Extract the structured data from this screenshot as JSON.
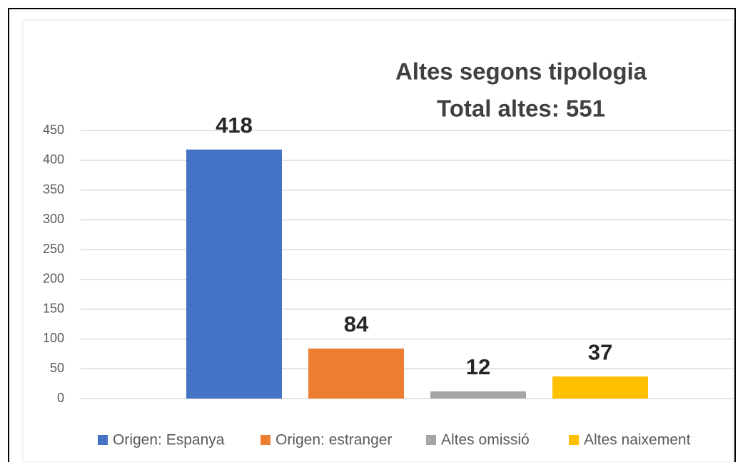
{
  "chart_data": {
    "type": "bar",
    "title": "Altes segons tipologia",
    "subtitle": "Total altes: 551",
    "series": [
      {
        "name": "Origen: Espanya",
        "color": "#4472c4",
        "values": [
          418
        ]
      },
      {
        "name": "Origen: estranger",
        "color": "#ed7d31",
        "values": [
          84
        ]
      },
      {
        "name": "Altes omissió",
        "color": "#a5a5a5",
        "values": [
          12
        ]
      },
      {
        "name": "Altes naixement",
        "color": "#ffc000",
        "values": [
          37
        ]
      }
    ],
    "ylim": [
      0,
      450
    ],
    "yticks": [
      0,
      50,
      100,
      150,
      200,
      250,
      300,
      350,
      400,
      450
    ],
    "grid": true,
    "legend": "bottom"
  }
}
